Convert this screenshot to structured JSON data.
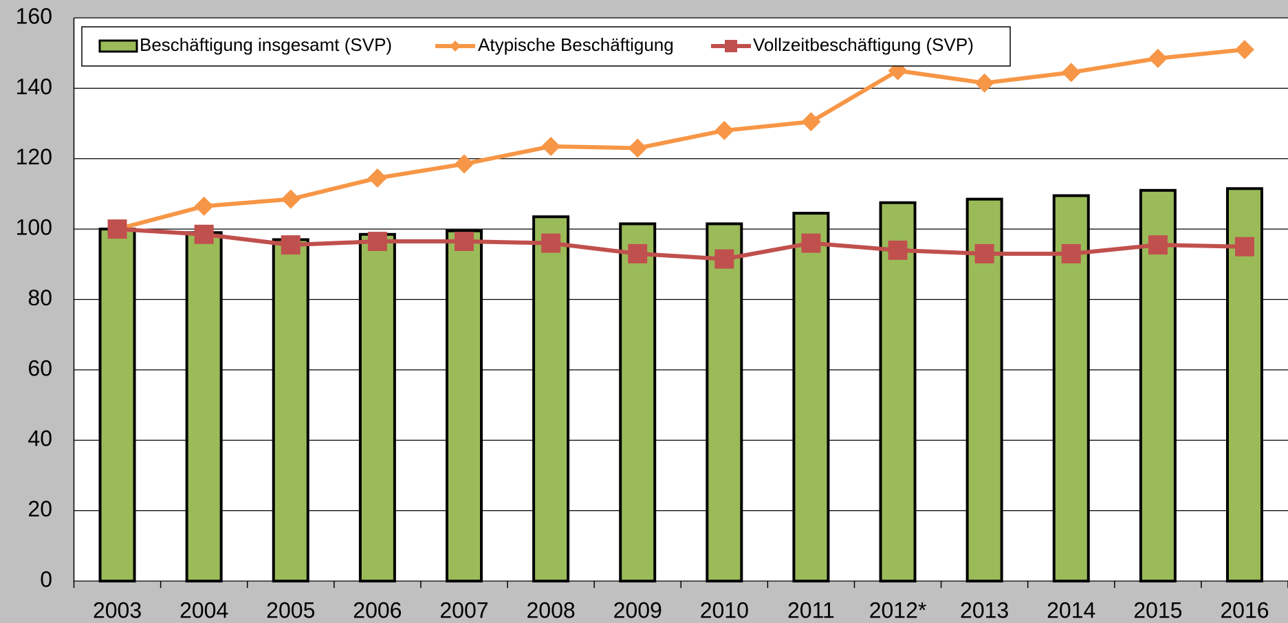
{
  "chart_data": {
    "type": "bar",
    "categories": [
      "2003",
      "2004",
      "2005",
      "2006",
      "2007",
      "2008",
      "2009",
      "2010",
      "2011",
      "2012*",
      "2013",
      "2014",
      "2015",
      "2016"
    ],
    "series": [
      {
        "name": "Beschäftigung insgesamt (SVP)",
        "type": "bar",
        "color": "#9bbb59",
        "values": [
          100,
          99,
          97,
          98.5,
          99.5,
          103.5,
          101.5,
          101.5,
          104.5,
          107.5,
          108.5,
          109.5,
          111,
          111.5
        ]
      },
      {
        "name": "Atypische Beschäftigung",
        "type": "line",
        "marker": "diamond",
        "color": "#f79646",
        "values": [
          100,
          106.5,
          108.5,
          114.5,
          118.5,
          123.5,
          123,
          128,
          130.5,
          145,
          141.5,
          144.5,
          148.5,
          151
        ]
      },
      {
        "name": "Vollzeitbeschäftigung (SVP)",
        "type": "line",
        "marker": "square",
        "color": "#c0504d",
        "values": [
          100,
          98.5,
          95.5,
          96.5,
          96.5,
          96,
          93,
          91.5,
          96,
          94,
          93,
          93,
          95.5,
          95
        ]
      }
    ],
    "ylim": [
      0,
      160
    ],
    "yticks": [
      0,
      20,
      40,
      60,
      80,
      100,
      120,
      140,
      160
    ],
    "grid": true,
    "legend": "top-left"
  }
}
